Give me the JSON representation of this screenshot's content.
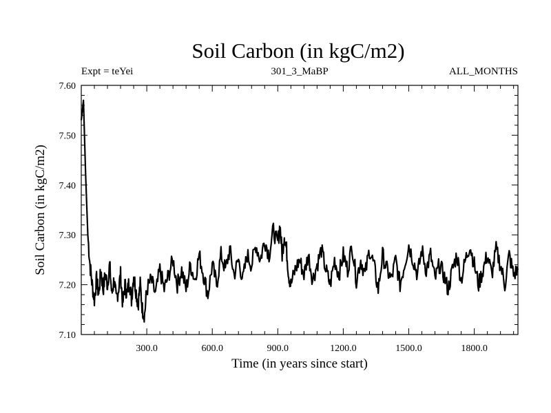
{
  "chart_data": {
    "type": "line",
    "title": "Soil Carbon (in kgC/m2)",
    "subtitle_left": "Expt = teYei",
    "subtitle_center": "301_3_MaBP",
    "subtitle_right": "ALL_MONTHS",
    "xlabel": "Time (in years since start)",
    "ylabel": "Soil Carbon (in kgC/m2)",
    "xlim": [
      0,
      2000
    ],
    "ylim": [
      7.1,
      7.6
    ],
    "xticks": [
      300,
      600,
      900,
      1200,
      1500,
      1800
    ],
    "xtick_labels": [
      "300.0",
      "600.0",
      "900.0",
      "1200.0",
      "1500.0",
      "1800.0"
    ],
    "yticks": [
      7.1,
      7.2,
      7.3,
      7.4,
      7.5,
      7.6
    ],
    "ytick_labels": [
      "7.10",
      "7.20",
      "7.30",
      "7.40",
      "7.50",
      "7.60"
    ],
    "line_color": "#000000",
    "series": [
      {
        "name": "Soil Carbon",
        "x": [
          0,
          10,
          20,
          30,
          40,
          50,
          60,
          70,
          80,
          90,
          100,
          110,
          120,
          130,
          140,
          150,
          160,
          170,
          180,
          190,
          200,
          210,
          220,
          230,
          240,
          250,
          260,
          270,
          280,
          290,
          300,
          320,
          340,
          360,
          380,
          400,
          420,
          440,
          460,
          480,
          500,
          520,
          540,
          560,
          580,
          600,
          620,
          640,
          660,
          680,
          700,
          720,
          740,
          760,
          780,
          800,
          820,
          840,
          860,
          880,
          900,
          910,
          920,
          930,
          940,
          950,
          960,
          980,
          1000,
          1020,
          1040,
          1060,
          1080,
          1100,
          1120,
          1140,
          1160,
          1180,
          1200,
          1220,
          1240,
          1260,
          1280,
          1300,
          1320,
          1340,
          1360,
          1380,
          1400,
          1420,
          1440,
          1460,
          1480,
          1500,
          1520,
          1540,
          1560,
          1580,
          1600,
          1620,
          1640,
          1660,
          1680,
          1700,
          1720,
          1740,
          1760,
          1780,
          1800,
          1820,
          1840,
          1860,
          1880,
          1900,
          1920,
          1940,
          1960,
          1980,
          2000
        ],
        "values": [
          7.53,
          7.57,
          7.42,
          7.3,
          7.24,
          7.2,
          7.17,
          7.21,
          7.18,
          7.23,
          7.19,
          7.22,
          7.2,
          7.24,
          7.18,
          7.21,
          7.17,
          7.19,
          7.22,
          7.16,
          7.2,
          7.18,
          7.21,
          7.17,
          7.22,
          7.19,
          7.16,
          7.2,
          7.15,
          7.14,
          7.19,
          7.21,
          7.18,
          7.23,
          7.19,
          7.22,
          7.25,
          7.2,
          7.23,
          7.19,
          7.24,
          7.21,
          7.26,
          7.22,
          7.18,
          7.24,
          7.2,
          7.26,
          7.23,
          7.27,
          7.22,
          7.25,
          7.21,
          7.26,
          7.24,
          7.28,
          7.25,
          7.29,
          7.26,
          7.31,
          7.28,
          7.32,
          7.26,
          7.3,
          7.27,
          7.22,
          7.2,
          7.23,
          7.25,
          7.22,
          7.26,
          7.21,
          7.24,
          7.27,
          7.23,
          7.2,
          7.25,
          7.22,
          7.26,
          7.23,
          7.28,
          7.21,
          7.25,
          7.22,
          7.27,
          7.24,
          7.19,
          7.26,
          7.23,
          7.21,
          7.25,
          7.2,
          7.24,
          7.28,
          7.25,
          7.22,
          7.27,
          7.23,
          7.26,
          7.21,
          7.24,
          7.22,
          7.19,
          7.23,
          7.26,
          7.21,
          7.25,
          7.28,
          7.24,
          7.2,
          7.23,
          7.26,
          7.22,
          7.27,
          7.24,
          7.2,
          7.26,
          7.22,
          7.23
        ]
      }
    ]
  }
}
